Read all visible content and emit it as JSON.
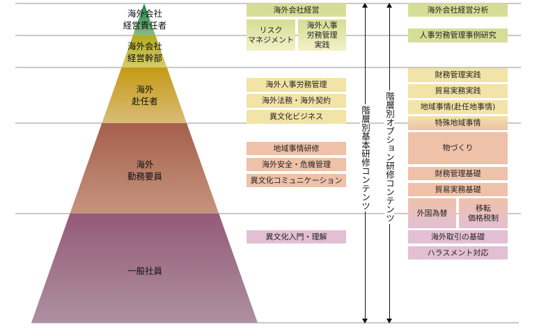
{
  "levels": [
    {
      "label": "海外会社\n経営責任者"
    },
    {
      "label": "海外会社\n経営幹部"
    },
    {
      "label": "海外\n赴任者"
    },
    {
      "label": "海外\n勤務要員"
    },
    {
      "label": "一般社員"
    }
  ],
  "basic_contents": {
    "label": "階層別基本研修コンテンツ",
    "items": [
      "海外会社経営",
      "リスク\nマネジメント",
      "海外人事\n労務管理\n実践",
      "海外人事労務管理",
      "海外法務・海外契約",
      "異文化ビジネス",
      "地域事情研修",
      "海外安全・危機管理",
      "異文化コミュニケーション",
      "異文化入門・理解"
    ]
  },
  "option_contents": {
    "label": "階層別オプション研修コンテンツ",
    "items": [
      "海外会社経営分析",
      "人事労務管理事例研究",
      "財務管理実践",
      "貿易実務実践",
      "地域事情(赴任地事情)",
      "特殊地域事情",
      "物づくり",
      "財務管理基礎",
      "貿易実務基礎",
      "外国為替",
      "移転\n価格税制",
      "海外取引の基礎",
      "ハラスメント対応"
    ]
  },
  "colors": {
    "green": "#d3de93",
    "yellow": "#f2e3a6",
    "salmon": "#eec1a8",
    "pink": "#e3bfd3"
  }
}
